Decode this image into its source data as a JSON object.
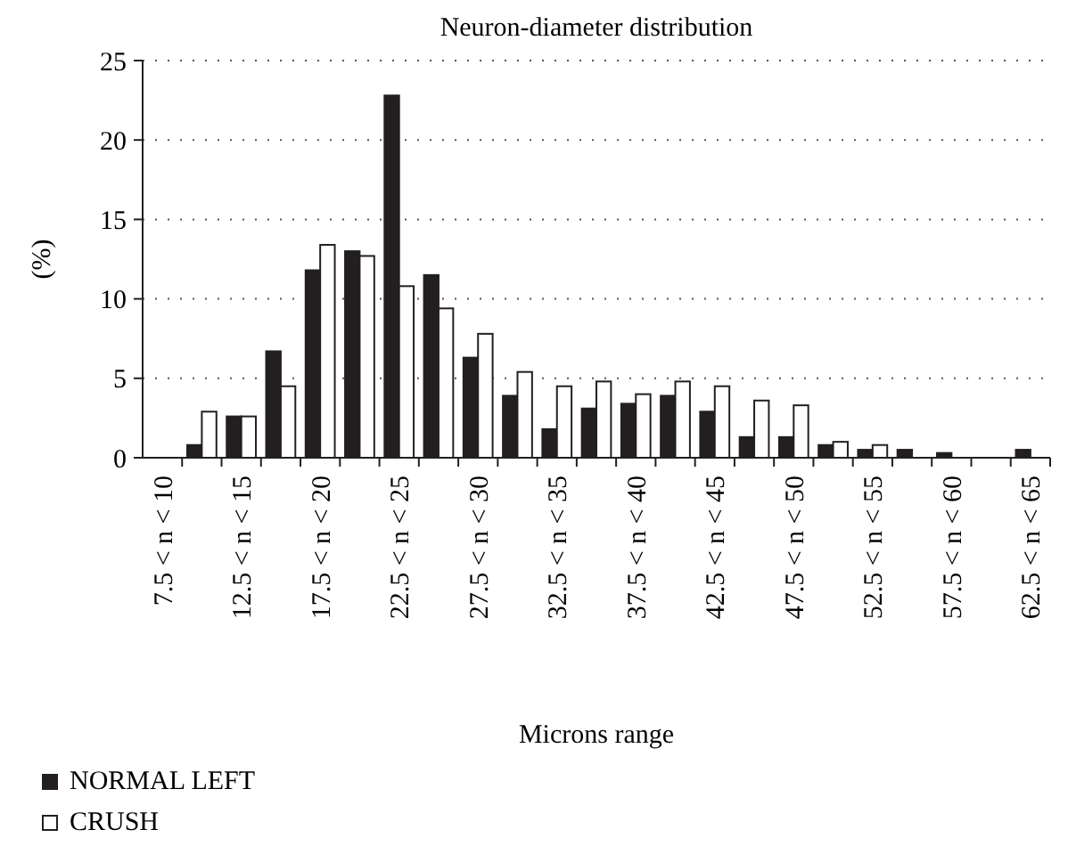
{
  "chart_data": {
    "type": "bar",
    "title": "Neuron-diameter distribution",
    "xlabel": "Microns range",
    "ylabel": "(%)",
    "categories": [
      "7.5 < n < 10",
      null,
      "12.5 < n < 15",
      null,
      "17.5 < n < 20",
      null,
      "22.5 < n < 25",
      null,
      "27.5 < n < 30",
      null,
      "32.5 < n < 35",
      null,
      "37.5 < n < 40",
      null,
      "42.5 < n < 45",
      null,
      "47.5 < n < 50",
      null,
      "52.5 < n < 55",
      null,
      "57.5 < n < 60",
      null,
      "62.5 < n < 65"
    ],
    "series": [
      {
        "name": "NORMAL LEFT",
        "color": "#231f20",
        "values": [
          0,
          0.8,
          2.6,
          6.7,
          11.8,
          13.0,
          22.8,
          11.5,
          6.3,
          3.9,
          1.8,
          3.1,
          3.4,
          3.9,
          2.9,
          1.3,
          1.3,
          0.8,
          0.5,
          0.5,
          0.3,
          0,
          0.5
        ]
      },
      {
        "name": "CRUSH",
        "color": "#ffffff",
        "values": [
          0,
          2.9,
          2.6,
          4.5,
          13.4,
          12.7,
          10.8,
          9.4,
          7.8,
          5.4,
          4.5,
          4.8,
          4.0,
          4.8,
          4.5,
          3.6,
          3.3,
          1.0,
          0.8,
          0,
          0,
          0,
          0
        ]
      }
    ],
    "ylim": [
      0,
      25
    ],
    "yticks": [
      0,
      5,
      10,
      15,
      20,
      25
    ],
    "grid": "y",
    "legend": "bottom left"
  }
}
